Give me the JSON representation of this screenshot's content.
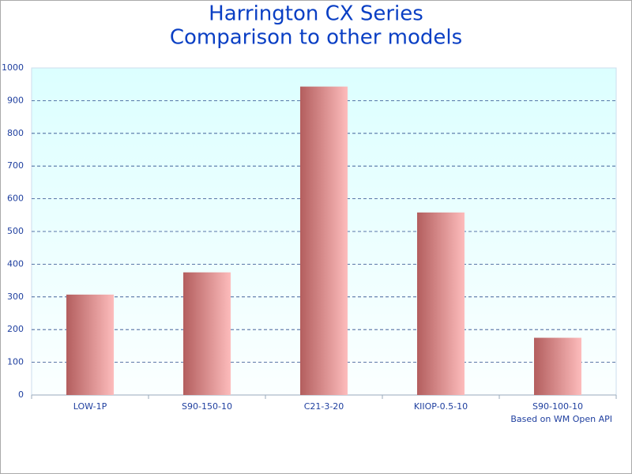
{
  "chart_data": {
    "type": "bar",
    "title": "Harrington CX Series",
    "subtitle": "Comparison to other models",
    "annotation": "Based on WM Open API",
    "categories": [
      "LOW-1P",
      "S90-150-10",
      "C21-3-20",
      "KIIOP-0.5-10",
      "S90-100-10"
    ],
    "values": [
      307,
      375,
      943,
      558,
      175
    ],
    "gradient": [
      "#b35e5e",
      "#fdbcbc"
    ],
    "ylim": [
      0,
      1000
    ],
    "yticks": [
      0,
      100,
      200,
      300,
      400,
      500,
      600,
      700,
      800,
      900,
      1000
    ],
    "grid": true
  }
}
